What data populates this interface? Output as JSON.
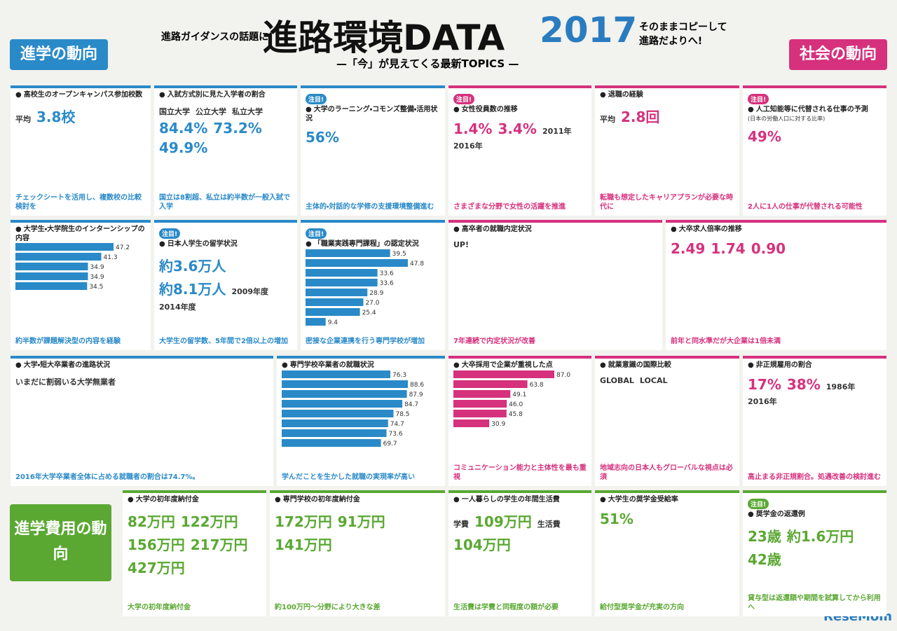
{
  "header": {
    "kicker": "進路ガイダンスの話題に!",
    "title": "進路環境DATA",
    "year": "2017",
    "subtitle": "—「今」が見えてくる最新TOPICS —",
    "note": "そのままコピーして 進路だよりへ!"
  },
  "sections": {
    "study": "進学の動向",
    "society": "社会の動向",
    "cost": "進学費用の動向"
  },
  "panels": [
    {
      "title": "高校生のオープンキャンパス参加校数",
      "callouts": [
        "平均",
        "3.8校"
      ],
      "caption": "チェックシートを活用し、複数校の比較検討を"
    },
    {
      "title": "入試方式別に見た入学者の割合",
      "callouts": [
        "国立大学",
        "公立大学",
        "私立大学",
        "84.4%",
        "73.2%",
        "49.9%"
      ],
      "caption": "国立は8割超、私立は約半数が一般入試で入学"
    },
    {
      "tag": "注目!",
      "title": "大学のラーニング・コモンズ整備・活用状況",
      "callouts": [
        "56%"
      ],
      "caption": "主体的・対話的な学修の支援環境整備進む"
    },
    {
      "tag": "注目!",
      "title": "女性役員数の推移",
      "callouts": [
        "1.4%",
        "3.4%",
        "2011年",
        "2016年"
      ],
      "caption": "さまざまな分野で女性の活躍を推進"
    },
    {
      "title": "退職の経験",
      "callouts": [
        "平均",
        "2.8回"
      ],
      "caption": "転職も想定したキャリアプランが必要な時代に"
    },
    {
      "tag": "注目!",
      "title": "人工知能等に代替される仕事の予測",
      "subtitle": "(日本の労働人口に対する比率)",
      "callouts": [
        "49%"
      ],
      "caption": "2人に1人の仕事が代替される可能性"
    },
    {
      "title": "大学生・大学院生のインターンシップの内容",
      "bars": [
        "47.2",
        "41.3",
        "34.9",
        "34.9",
        "34.5"
      ],
      "caption": "約半数が課題解決型の内容を経験"
    },
    {
      "tag": "注目!",
      "title": "日本人学生の留学状況",
      "callouts": [
        "約3.6万人",
        "約8.1万人",
        "2009年度",
        "2014年度"
      ],
      "caption": "大学生の留学数、5年間で2倍以上の増加"
    },
    {
      "tag": "注目!",
      "title": "「職業実践専門課程」の認定状況",
      "bars": [
        "39.5",
        "47.8",
        "33.6",
        "33.6",
        "28.9",
        "27.0",
        "25.4",
        "9.4"
      ],
      "caption": "密接な企業連携を行う専門学校が増加"
    },
    {
      "title": "高卒者の就職内定状況",
      "callouts": [
        "UP!"
      ],
      "caption": "7年連続で内定状況が改善"
    },
    {
      "title": "大卒求人倍率の推移",
      "callouts": [
        "2.49",
        "1.74",
        "0.90"
      ],
      "caption": "前年と同水準だが大企業は1倍未満"
    },
    {
      "title": "大学・短大卒業者の進路状況",
      "callouts": [
        "いまだに割弱いる大学無業者"
      ],
      "caption": "2016年大学卒業者全体に占める就職者の割合は74.7%。"
    },
    {
      "title": "専門学校卒業者の就職状況",
      "bars": [
        "76.3",
        "88.6",
        "87.9",
        "84.7",
        "78.5",
        "74.7",
        "73.6",
        "69.7"
      ],
      "caption": "学んだことを生かした就職の実現率が高い"
    },
    {
      "title": "大卒採用で企業が重視した点",
      "bars": [
        "87.0",
        "63.8",
        "49.1",
        "46.0",
        "45.8",
        "30.9"
      ],
      "caption": "コミュニケーション能力と主体性を最も重視"
    },
    {
      "title": "就業意識の国際比較",
      "callouts": [
        "GLOBAL",
        "LOCAL"
      ],
      "caption": "地域志向の日本人もグローバルな視点は必須"
    },
    {
      "title": "非正規雇用の割合",
      "callouts": [
        "17%",
        "38%",
        "1986年",
        "2016年"
      ],
      "caption": "高止まる非正規割合。処遇改善の検討進む"
    },
    {
      "title": "大学の初年度納付金",
      "callouts": [
        "82万円",
        "122万円",
        "156万円",
        "217万円",
        "427万円"
      ],
      "caption": "大学の初年度納付金"
    },
    {
      "title": "専門学校の初年度納付金",
      "callouts": [
        "172万円",
        "91万円",
        "141万円"
      ],
      "caption": "約100万円～分野により大きな差"
    },
    {
      "title": "一人暮らしの学生の年間生活費",
      "callouts": [
        "学費",
        "109万円",
        "生活費",
        "104万円"
      ],
      "caption": "生活費は学費と同程度の額が必要"
    },
    {
      "title": "大学生の奨学金受給率",
      "callouts": [
        "51%"
      ],
      "caption": "給付型奨学金が充実の方向"
    },
    {
      "tag": "注目!",
      "title": "奨学金の返還例",
      "callouts": [
        "23歳",
        "約1.6万円",
        "42歳"
      ],
      "caption": "貸与型は返還額や期間を試算してから利用へ"
    }
  ],
  "logo": "ReseMom"
}
